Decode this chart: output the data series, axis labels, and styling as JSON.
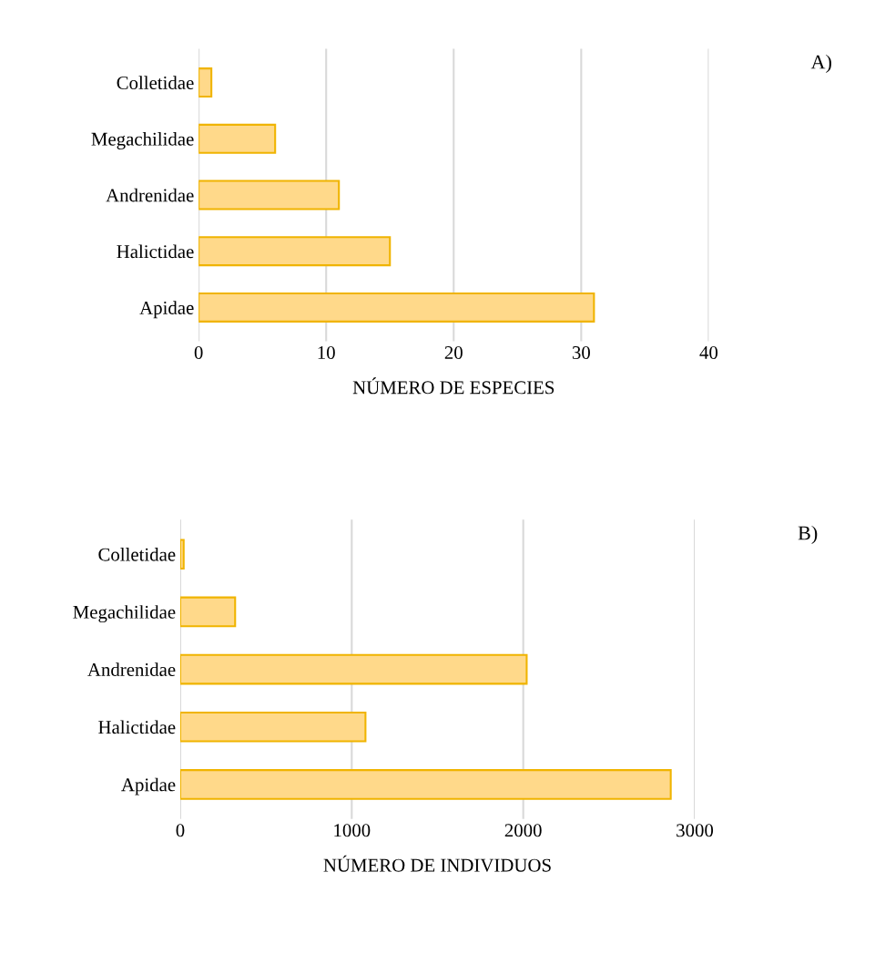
{
  "chart_data": [
    {
      "type": "bar",
      "orientation": "horizontal",
      "categories": [
        "Colletidae",
        "Megachilidae",
        "Andrenidae",
        "Halictidae",
        "Apidae"
      ],
      "values": [
        1,
        6,
        11,
        15,
        31
      ],
      "color": "#ffd98a",
      "xlim": [
        0,
        40
      ],
      "xticks": [
        0,
        10,
        20,
        30,
        40
      ],
      "xlabel": "NÚMERO DE ESPECIES",
      "grid": "x",
      "annotations": [
        "A)"
      ]
    },
    {
      "type": "bar",
      "orientation": "horizontal",
      "categories": [
        "Colletidae",
        "Megachilidae",
        "Andrenidae",
        "Halictidae",
        "Apidae"
      ],
      "values": [
        20,
        320,
        2020,
        1080,
        2860
      ],
      "color": "#ffd98a",
      "xlim": [
        0,
        3000
      ],
      "xticks": [
        0,
        1000,
        2000,
        3000
      ],
      "xlabel": "NÚMERO DE INDIVIDUOS",
      "grid": "x",
      "annotations": [
        "B)"
      ]
    }
  ]
}
